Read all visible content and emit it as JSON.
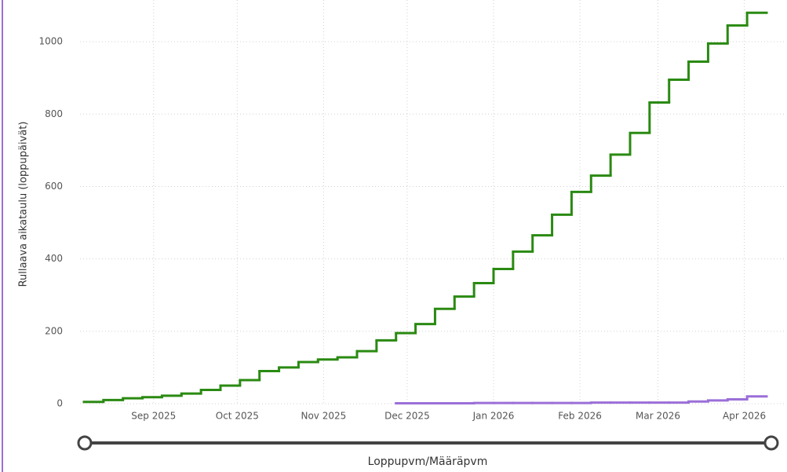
{
  "chart_data": {
    "type": "step-line",
    "y_label": "Rullaava aikataulu (loppupäivät)",
    "x_label": "Loppupvm/Määräpvm",
    "x": [
      0,
      7,
      14,
      21,
      28,
      35,
      42,
      49,
      56,
      63,
      70,
      77,
      84,
      91,
      98,
      105,
      112,
      119,
      126,
      133,
      140,
      147,
      154,
      161,
      168,
      175,
      182,
      189,
      196,
      203,
      210,
      217,
      224,
      231,
      238
    ],
    "series": [
      {
        "color": "#2a8a12",
        "values": [
          5,
          10,
          15,
          18,
          22,
          28,
          38,
          50,
          65,
          90,
          100,
          115,
          122,
          128,
          145,
          175,
          195,
          220,
          262,
          296,
          333,
          372,
          420,
          465,
          522,
          585,
          630,
          688,
          748,
          832,
          895,
          945,
          995,
          1045,
          1080
        ]
      },
      {
        "color": "#9b6fd8",
        "values": [
          null,
          null,
          null,
          null,
          null,
          null,
          null,
          null,
          null,
          null,
          null,
          null,
          null,
          null,
          null,
          null,
          1,
          1,
          1,
          1,
          2,
          2,
          2,
          2,
          2,
          2,
          3,
          3,
          3,
          3,
          3,
          6,
          9,
          12,
          20
        ]
      }
    ],
    "xlim": [
      0,
      245
    ],
    "xticks": [
      {
        "value": 25,
        "label": "Sep 2025"
      },
      {
        "value": 55,
        "label": "Oct 2025"
      },
      {
        "value": 86,
        "label": "Nov 2025"
      },
      {
        "value": 116,
        "label": "Dec 2025"
      },
      {
        "value": 147,
        "label": "Jan 2026"
      },
      {
        "value": 178,
        "label": "Feb 2026"
      },
      {
        "value": 206,
        "label": "Mar 2026"
      },
      {
        "value": 237,
        "label": "Apr 2026"
      }
    ],
    "ylim": [
      0,
      1100
    ],
    "yticks": [
      0,
      200,
      400,
      600,
      800,
      1000
    ],
    "grid": true
  }
}
